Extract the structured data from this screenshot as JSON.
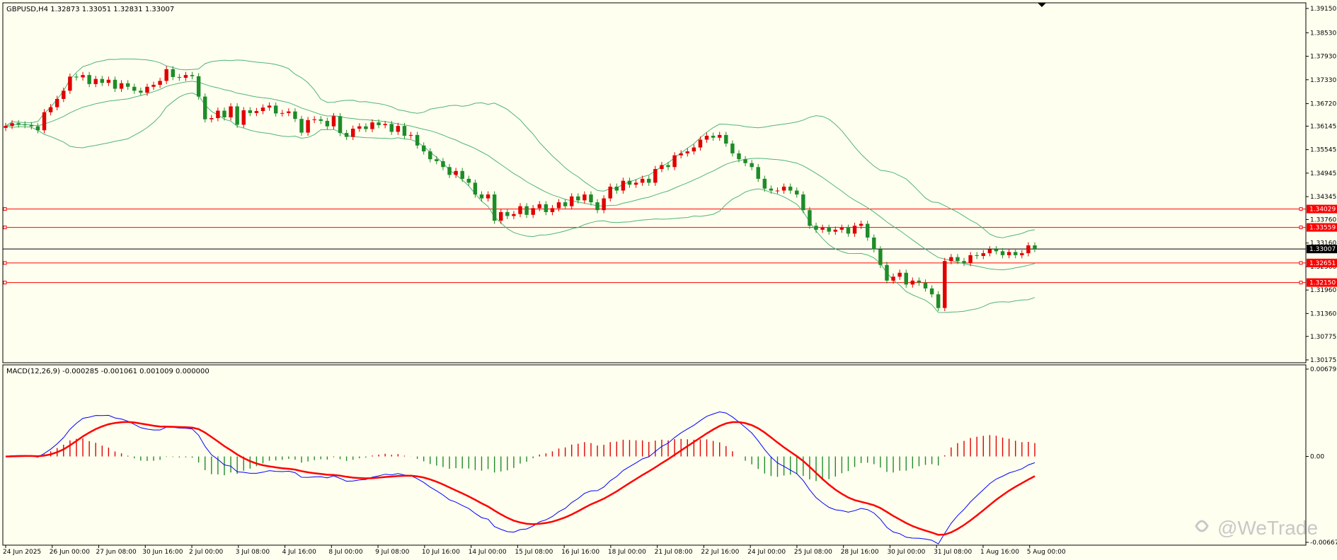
{
  "chart_data": [
    {
      "type": "candlestick",
      "symbol": "GBPUSD",
      "timeframe": "H4",
      "header": "GBPUSD,H4  1.32873 1.33051 1.32831 1.33007",
      "ylim": [
        1.30175,
        1.3915
      ],
      "y_ticks": [
        "1.39150",
        "1.38530",
        "1.37930",
        "1.37330",
        "1.36720",
        "1.36145",
        "1.35545",
        "1.34945",
        "1.34345",
        "1.33760",
        "1.33160",
        "1.32560",
        "1.31960",
        "1.31360",
        "1.30775",
        "1.30175"
      ],
      "current_price": "1.33007",
      "horizontal_levels": [
        "1.34029",
        "1.33559",
        "1.32651",
        "1.32150"
      ],
      "indicator_overlay": "Bollinger Bands",
      "candles_close": [
        1.3615,
        1.3622,
        1.3619,
        1.3617,
        1.3614,
        1.3604,
        1.365,
        1.3663,
        1.3684,
        1.3705,
        1.3741,
        1.3739,
        1.3745,
        1.3722,
        1.3735,
        1.3725,
        1.3733,
        1.371,
        1.3724,
        1.3715,
        1.3705,
        1.37,
        1.3715,
        1.372,
        1.373,
        1.376,
        1.374,
        1.3738,
        1.3745,
        1.3742,
        1.369,
        1.3632,
        1.3635,
        1.3654,
        1.3637,
        1.3665,
        1.3618,
        1.3655,
        1.3648,
        1.3653,
        1.3662,
        1.3667,
        1.3647,
        1.3648,
        1.3652,
        1.3633,
        1.3598,
        1.363,
        1.3632,
        1.3628,
        1.3614,
        1.364,
        1.3597,
        1.3587,
        1.3608,
        1.3614,
        1.3607,
        1.3624,
        1.3617,
        1.362,
        1.36,
        1.3615,
        1.359,
        1.3592,
        1.3565,
        1.355,
        1.353,
        1.3525,
        1.351,
        1.349,
        1.35,
        1.348,
        1.347,
        1.344,
        1.343,
        1.344,
        1.3373,
        1.3395,
        1.3385,
        1.339,
        1.341,
        1.3388,
        1.3405,
        1.3415,
        1.3395,
        1.3405,
        1.342,
        1.341,
        1.3435,
        1.3425,
        1.344,
        1.342,
        1.34,
        1.343,
        1.346,
        1.345,
        1.3475,
        1.3465,
        1.347,
        1.348,
        1.347,
        1.3505,
        1.3515,
        1.351,
        1.354,
        1.3545,
        1.355,
        1.356,
        1.358,
        1.359,
        1.3585,
        1.3592,
        1.357,
        1.3545,
        1.353,
        1.352,
        1.351,
        1.348,
        1.3455,
        1.345,
        1.345,
        1.346,
        1.345,
        1.344,
        1.34,
        1.336,
        1.335,
        1.3355,
        1.3345,
        1.335,
        1.3355,
        1.334,
        1.336,
        1.3365,
        1.333,
        1.33,
        1.326,
        1.322,
        1.323,
        1.324,
        1.321,
        1.322,
        1.3215,
        1.32,
        1.3185,
        1.315,
        1.327,
        1.328,
        1.327,
        1.3265,
        1.3285,
        1.3283,
        1.329,
        1.33,
        1.3295,
        1.3285,
        1.3293,
        1.3285,
        1.329,
        1.331,
        1.3301
      ],
      "macd_label": "MACD(12,26,9) -0.000285 -0.001061 0.001009 0.000000",
      "macd_ylim": [
        -0.006674,
        0.006791
      ],
      "macd_y_ticks": [
        "0.006791",
        "0.00",
        "-0.006674"
      ],
      "x_ticks": [
        "24 Jun 2025",
        "26 Jun 00:00",
        "27 Jun 08:00",
        "30 Jun 16:00",
        "2 Jul 00:00",
        "3 Jul 08:00",
        "4 Jul 16:00",
        "8 Jul 00:00",
        "9 Jul 08:00",
        "10 Jul 16:00",
        "14 Jul 00:00",
        "15 Jul 08:00",
        "16 Jul 16:00",
        "18 Jul 00:00",
        "21 Jul 08:00",
        "22 Jul 16:00",
        "24 Jul 00:00",
        "25 Jul 08:00",
        "28 Jul 16:00",
        "30 Jul 00:00",
        "31 Jul 08:00",
        "1 Aug 16:00",
        "5 Aug 00:00"
      ],
      "colors": {
        "bull": "#e00000",
        "bear": "#1e8c28",
        "band": "#50b478",
        "level": "#ff0000",
        "macd_line": "#0000ff",
        "signal_line": "#ff0000",
        "hist_pos": "#e00000",
        "hist_neg": "#1e8c28"
      }
    }
  ],
  "watermark": "@WeTrade"
}
